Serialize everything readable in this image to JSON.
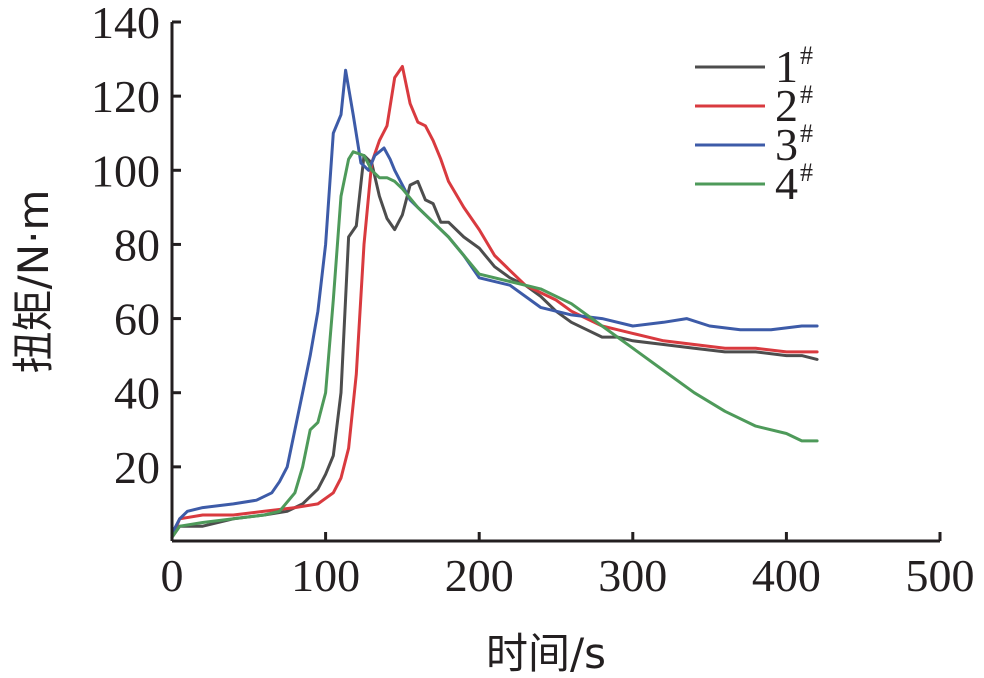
{
  "chart_data": {
    "type": "line",
    "xlabel": "时间/s",
    "ylabel": "扭矩/N·m",
    "xlim": [
      0,
      500
    ],
    "ylim": [
      0,
      140
    ],
    "xticks": [
      0,
      100,
      200,
      300,
      400,
      500
    ],
    "yticks": [
      20,
      40,
      60,
      80,
      100,
      120,
      140
    ],
    "grid": false,
    "legend_position": "top-right",
    "series": [
      {
        "name": "1",
        "sup": "#",
        "color": "#4d4d4d",
        "x": [
          0,
          5,
          20,
          40,
          60,
          75,
          85,
          95,
          100,
          105,
          110,
          115,
          120,
          125,
          130,
          135,
          140,
          145,
          150,
          155,
          160,
          165,
          170,
          175,
          180,
          190,
          200,
          210,
          220,
          230,
          240,
          250,
          260,
          270,
          280,
          290,
          300,
          320,
          340,
          360,
          380,
          400,
          410,
          420
        ],
        "y": [
          1,
          4,
          4,
          6,
          7,
          8,
          10,
          14,
          18,
          23,
          40,
          82,
          85,
          104,
          102,
          93,
          87,
          84,
          88,
          96,
          97,
          92,
          91,
          86,
          86,
          82,
          79,
          74,
          71,
          69,
          66,
          62,
          59,
          57,
          55,
          55,
          54,
          53,
          52,
          51,
          51,
          50,
          50,
          49
        ]
      },
      {
        "name": "2",
        "sup": "#",
        "color": "#d93a3f",
        "x": [
          0,
          5,
          20,
          40,
          60,
          80,
          95,
          105,
          110,
          115,
          120,
          125,
          130,
          135,
          140,
          145,
          150,
          155,
          160,
          165,
          170,
          175,
          180,
          190,
          200,
          210,
          220,
          230,
          240,
          250,
          260,
          270,
          280,
          290,
          300,
          320,
          340,
          360,
          380,
          400,
          420
        ],
        "y": [
          1,
          6,
          7,
          7,
          8,
          9,
          10,
          13,
          17,
          25,
          45,
          80,
          102,
          108,
          112,
          125,
          128,
          118,
          113,
          112,
          108,
          103,
          97,
          90,
          84,
          77,
          73,
          69,
          67,
          65,
          62,
          60,
          58,
          57,
          56,
          54,
          53,
          52,
          52,
          51,
          51
        ]
      },
      {
        "name": "3",
        "sup": "#",
        "color": "#3d5ba8",
        "x": [
          0,
          5,
          10,
          20,
          40,
          55,
          65,
          70,
          75,
          80,
          85,
          90,
          95,
          100,
          105,
          110,
          113,
          118,
          123,
          128,
          132,
          138,
          142,
          145,
          150,
          155,
          160,
          170,
          180,
          190,
          200,
          220,
          240,
          260,
          280,
          300,
          320,
          335,
          350,
          370,
          390,
          410,
          420
        ],
        "y": [
          2,
          6,
          8,
          9,
          10,
          11,
          13,
          16,
          20,
          30,
          40,
          50,
          62,
          80,
          110,
          115,
          127,
          115,
          102,
          100,
          104,
          106,
          103,
          100,
          96,
          92,
          90,
          86,
          82,
          77,
          71,
          69,
          63,
          61,
          60,
          58,
          59,
          60,
          58,
          57,
          57,
          58,
          58
        ]
      },
      {
        "name": "4",
        "sup": "#",
        "color": "#4e9a5a",
        "x": [
          0,
          5,
          20,
          40,
          60,
          70,
          80,
          85,
          90,
          95,
          100,
          105,
          110,
          115,
          118,
          125,
          130,
          135,
          140,
          145,
          150,
          160,
          170,
          180,
          190,
          200,
          220,
          240,
          260,
          280,
          300,
          320,
          340,
          360,
          380,
          400,
          410,
          420
        ],
        "y": [
          1,
          4,
          5,
          6,
          7,
          8,
          13,
          20,
          30,
          32,
          40,
          65,
          93,
          103,
          105,
          104,
          100,
          98,
          98,
          97,
          95,
          90,
          86,
          82,
          77,
          72,
          70,
          68,
          64,
          58,
          52,
          46,
          40,
          35,
          31,
          29,
          27,
          27
        ]
      }
    ]
  }
}
